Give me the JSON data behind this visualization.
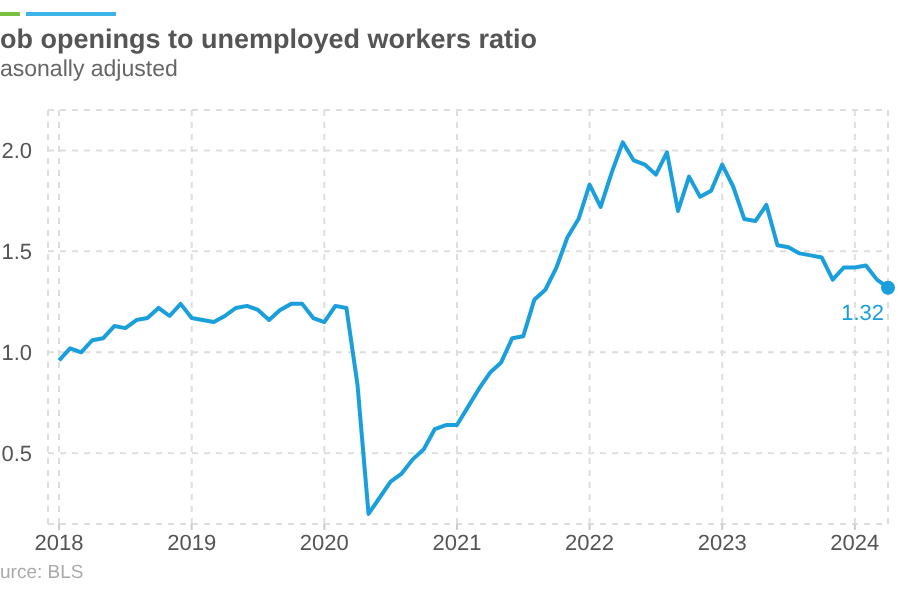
{
  "chart_data": {
    "type": "line",
    "title": "ob openings to unemployed workers ratio",
    "subtitle": "asonally adjusted",
    "annotations": [
      "urce: BLS"
    ],
    "x": [
      "2018-01",
      "2018-02",
      "2018-03",
      "2018-04",
      "2018-05",
      "2018-06",
      "2018-07",
      "2018-08",
      "2018-09",
      "2018-10",
      "2018-11",
      "2018-12",
      "2019-01",
      "2019-02",
      "2019-03",
      "2019-04",
      "2019-05",
      "2019-06",
      "2019-07",
      "2019-08",
      "2019-09",
      "2019-10",
      "2019-11",
      "2019-12",
      "2020-01",
      "2020-02",
      "2020-03",
      "2020-04",
      "2020-05",
      "2020-06",
      "2020-07",
      "2020-08",
      "2020-09",
      "2020-10",
      "2020-11",
      "2020-12",
      "2021-01",
      "2021-02",
      "2021-03",
      "2021-04",
      "2021-05",
      "2021-06",
      "2021-07",
      "2021-08",
      "2021-09",
      "2021-10",
      "2021-11",
      "2021-12",
      "2022-01",
      "2022-02",
      "2022-03",
      "2022-04",
      "2022-05",
      "2022-06",
      "2022-07",
      "2022-08",
      "2022-09",
      "2022-10",
      "2022-11",
      "2022-12",
      "2023-01",
      "2023-02",
      "2023-03",
      "2023-04",
      "2023-05",
      "2023-06",
      "2023-07",
      "2023-08",
      "2023-09",
      "2023-10",
      "2023-11",
      "2023-12",
      "2024-01",
      "2024-02",
      "2024-03",
      "2024-04"
    ],
    "series": [
      {
        "color": "#1a9fdc",
        "values": [
          0.96,
          1.02,
          1.0,
          1.06,
          1.07,
          1.13,
          1.12,
          1.16,
          1.17,
          1.22,
          1.18,
          1.24,
          1.17,
          1.16,
          1.15,
          1.18,
          1.22,
          1.23,
          1.21,
          1.16,
          1.21,
          1.24,
          1.24,
          1.17,
          1.15,
          1.23,
          1.22,
          0.84,
          0.2,
          0.28,
          0.36,
          0.4,
          0.47,
          0.52,
          0.62,
          0.64,
          0.64,
          0.73,
          0.82,
          0.9,
          0.95,
          1.07,
          1.08,
          1.26,
          1.31,
          1.42,
          1.57,
          1.66,
          1.83,
          1.72,
          1.89,
          2.04,
          1.95,
          1.93,
          1.88,
          1.99,
          1.7,
          1.87,
          1.77,
          1.8,
          1.93,
          1.82,
          1.66,
          1.65,
          1.73,
          1.53,
          1.52,
          1.49,
          1.48,
          1.47,
          1.36,
          1.42,
          1.42,
          1.43,
          1.36,
          1.32
        ],
        "value_labels": [
          null,
          null,
          null,
          null,
          null,
          null,
          null,
          null,
          null,
          null,
          null,
          null,
          null,
          null,
          null,
          null,
          null,
          null,
          null,
          null,
          null,
          null,
          null,
          null,
          null,
          null,
          null,
          null,
          null,
          null,
          null,
          null,
          null,
          null,
          null,
          null,
          null,
          null,
          null,
          null,
          null,
          null,
          null,
          null,
          null,
          null,
          null,
          null,
          null,
          null,
          null,
          null,
          null,
          null,
          null,
          null,
          null,
          null,
          null,
          null,
          null,
          null,
          null,
          null,
          null,
          null,
          null,
          null,
          null,
          null,
          null,
          null,
          null,
          null,
          null,
          "1.32"
        ]
      }
    ],
    "xlim": [
      "2017-12",
      "2024-04"
    ],
    "xticks": [
      "2018",
      "2019",
      "2020",
      "2021",
      "2022",
      "2023",
      "2024"
    ],
    "ylim": [
      0.15,
      2.2
    ],
    "yticks": [
      0.5,
      {
        "value": 1,
        "label": "1.0"
      },
      1.5,
      {
        "value": 2,
        "label": "2.0"
      }
    ],
    "grid": true
  }
}
